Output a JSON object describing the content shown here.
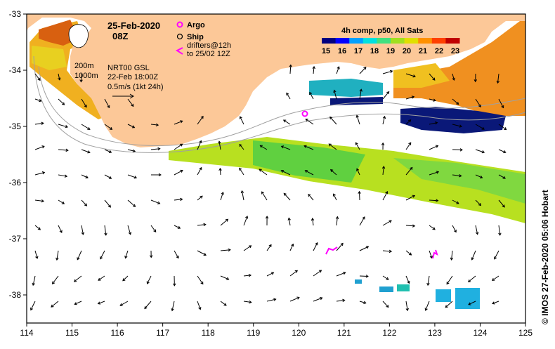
{
  "map": {
    "date": "25-Feb-2020",
    "time": "08Z",
    "legend": {
      "argo_label": "Argo",
      "ship_label": "Ship",
      "drifters_label_1": "drifters@12h",
      "drifters_label_2": "to 25/02 12Z",
      "argo_color": "#ff00ff",
      "drifter_color": "#ff00ff"
    },
    "contours": {
      "label_200": "200m",
      "label_1000": "1000m"
    },
    "current_info": {
      "line1": "NRT00 GSL",
      "line2": "22-Feb 18:00Z",
      "line3": "0.5m/s (1kt 24h)"
    },
    "colorbar": {
      "title": "4h comp, p50, All Sats",
      "ticks": [
        "15",
        "16",
        "17",
        "18",
        "19",
        "20",
        "21",
        "22",
        "23"
      ],
      "colors": [
        "#000080",
        "#0000ff",
        "#00a0ff",
        "#00e0e0",
        "#40e080",
        "#a0e020",
        "#e0e000",
        "#ff9000",
        "#ff4000",
        "#c00000"
      ]
    },
    "credit": "© IMOS 27-Feb-2020 05:06 Hobart",
    "x_axis": {
      "ticks": [
        "114",
        "115",
        "116",
        "117",
        "118",
        "119",
        "120",
        "121",
        "122",
        "123",
        "124",
        "125"
      ]
    },
    "y_axis": {
      "ticks": [
        "-33",
        "-34",
        "-35",
        "-36",
        "-37",
        "-38"
      ]
    },
    "colors": {
      "land": "#fcc898",
      "contour": "#a0a0a0",
      "frame": "#000000"
    }
  }
}
